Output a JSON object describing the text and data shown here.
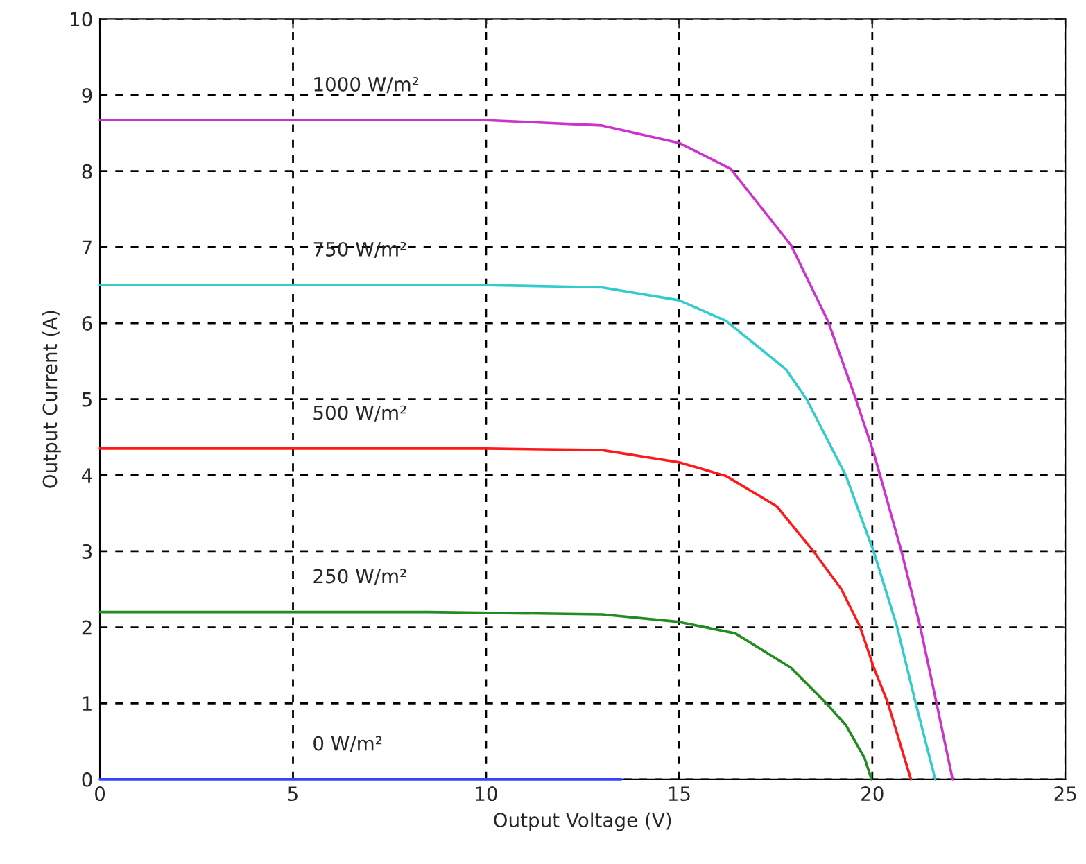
{
  "chart_data": {
    "type": "line",
    "xlabel": "Output Voltage (V)",
    "ylabel": "Output Current (A)",
    "xlim": [
      0,
      25
    ],
    "ylim": [
      0,
      10
    ],
    "xticks": [
      0,
      5,
      10,
      15,
      20,
      25
    ],
    "yticks": [
      0,
      1,
      2,
      3,
      4,
      5,
      6,
      7,
      8,
      9,
      10
    ],
    "grid": true,
    "legend": false,
    "marker": "none",
    "line_style": "solid",
    "series": [
      {
        "name": "1000 W/m²",
        "color": "#cc33cc",
        "x": [
          0,
          10,
          13,
          15,
          16.33,
          17.89,
          18.85,
          19.56,
          20.04,
          20.76,
          21.24,
          21.66,
          22.08
        ],
        "values": [
          8.67,
          8.67,
          8.6,
          8.37,
          8.03,
          7.03,
          6.03,
          5.02,
          4.29,
          2.99,
          2.01,
          1.01,
          0
        ]
      },
      {
        "name": "750 W/m²",
        "color": "#33cccc",
        "x": [
          0,
          10,
          13,
          15,
          16.21,
          17.77,
          18.31,
          19.32,
          20.04,
          20.64,
          21.12,
          21.63
        ],
        "values": [
          6.5,
          6.5,
          6.47,
          6.3,
          6.03,
          5.39,
          4.99,
          3.99,
          2.99,
          2.01,
          1.01,
          0
        ]
      },
      {
        "name": "500 W/m²",
        "color": "#ff1a1a",
        "x": [
          0,
          10,
          13,
          15,
          16.21,
          17.53,
          18.49,
          19.2,
          19.68,
          20.04,
          20.4,
          21.0
        ],
        "values": [
          4.35,
          4.35,
          4.33,
          4.17,
          3.99,
          3.59,
          2.99,
          2.5,
          2.01,
          1.47,
          1.01,
          0
        ]
      },
      {
        "name": "250 W/m²",
        "color": "#228b22",
        "x": [
          0,
          8.5,
          13,
          15,
          16.45,
          17.89,
          18.79,
          19.32,
          19.8,
          19.98
        ],
        "values": [
          2.2,
          2.2,
          2.17,
          2.07,
          1.92,
          1.47,
          1.01,
          0.71,
          0.28,
          0
        ]
      },
      {
        "name": "0 W/m²",
        "color": "#3344ff",
        "x": [
          0,
          13.5
        ],
        "values": [
          0,
          0
        ]
      }
    ]
  }
}
